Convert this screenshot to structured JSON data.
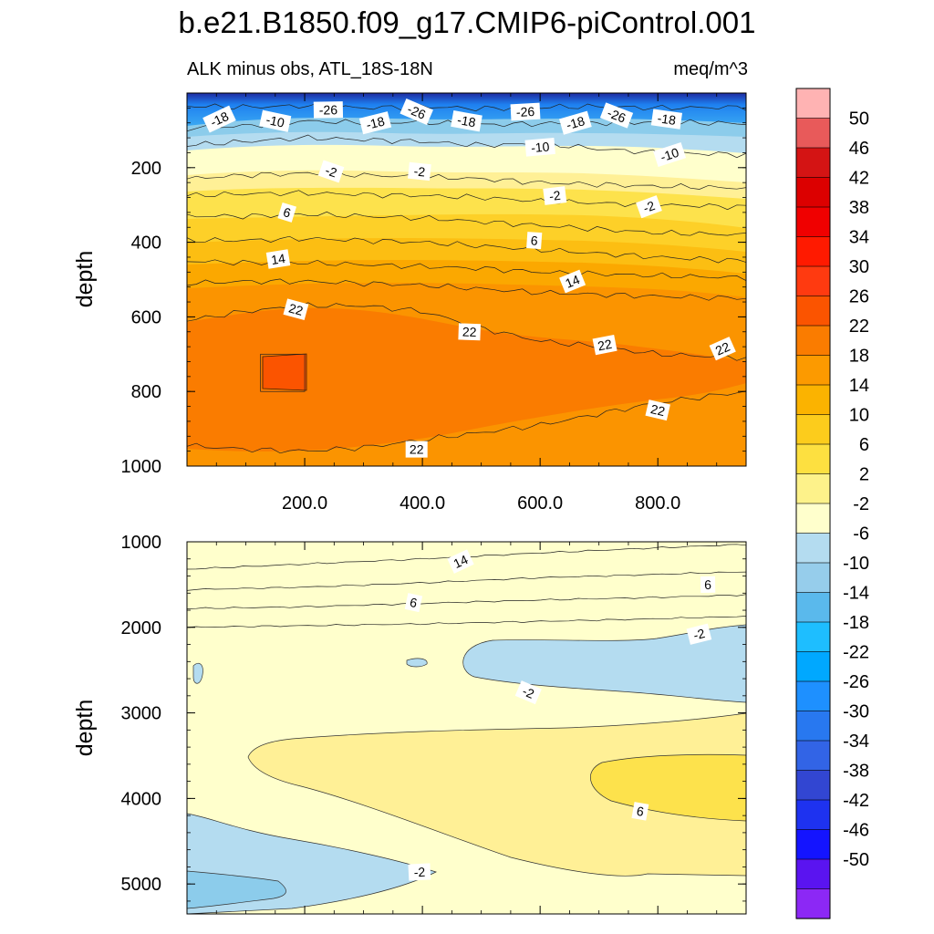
{
  "figure": {
    "title": "b.e21.B1850.f09_g17.CMIP6-piControl.001",
    "left_string": "ALK minus obs, ATL_18S-18N",
    "right_string": "meq/m^3"
  },
  "chart_data": [
    {
      "type": "heatmap",
      "panel": "upper",
      "title": "ALK minus obs, ATL_18S-18N",
      "units": "meq/m^3",
      "xlabel": "",
      "ylabel": "depth",
      "xlim": [
        0,
        950
      ],
      "ylim": [
        1000,
        0
      ],
      "xticks": [
        "200.0",
        "400.0",
        "600.0",
        "800.0"
      ],
      "xtick_values": [
        200,
        400,
        600,
        800
      ],
      "yticks": [
        "200",
        "400",
        "600",
        "800",
        "1000"
      ],
      "ytick_values": [
        200,
        400,
        600,
        800,
        1000
      ],
      "contour_lines": [
        {
          "level": -26,
          "x": [
            0,
            100,
            200,
            300,
            400,
            500,
            600,
            700,
            800,
            950
          ],
          "depth": [
            35,
            38,
            34,
            40,
            36,
            42,
            38,
            36,
            40,
            38
          ]
        },
        {
          "level": -18,
          "x": [
            0,
            100,
            200,
            300,
            400,
            500,
            600,
            700,
            800,
            950
          ],
          "depth": [
            95,
            88,
            75,
            80,
            78,
            85,
            82,
            80,
            78,
            82
          ]
        },
        {
          "level": -10,
          "x": [
            0,
            100,
            200,
            300,
            400,
            500,
            600,
            700,
            800,
            950
          ],
          "depth": [
            140,
            130,
            120,
            125,
            130,
            140,
            135,
            150,
            160,
            165
          ]
        },
        {
          "level": -2,
          "x": [
            0,
            100,
            200,
            300,
            400,
            500,
            600,
            700,
            800,
            950
          ],
          "depth": [
            230,
            220,
            215,
            220,
            225,
            230,
            240,
            245,
            250,
            255
          ]
        },
        {
          "level": 2,
          "x": [
            0,
            100,
            200,
            300,
            400,
            500,
            600,
            700,
            800,
            950
          ],
          "depth": [
            275,
            270,
            268,
            272,
            275,
            280,
            290,
            295,
            300,
            305
          ]
        },
        {
          "level": 6,
          "x": [
            0,
            100,
            200,
            300,
            400,
            500,
            600,
            700,
            800,
            950
          ],
          "depth": [
            330,
            330,
            325,
            330,
            335,
            345,
            355,
            365,
            375,
            380
          ]
        },
        {
          "level": 10,
          "x": [
            0,
            100,
            200,
            300,
            400,
            500,
            600,
            700,
            800,
            950
          ],
          "depth": [
            395,
            395,
            390,
            395,
            400,
            410,
            420,
            430,
            440,
            450
          ]
        },
        {
          "level": 14,
          "x": [
            0,
            100,
            200,
            300,
            400,
            500,
            600,
            700,
            800,
            950
          ],
          "depth": [
            450,
            455,
            455,
            460,
            465,
            470,
            480,
            485,
            490,
            495
          ]
        },
        {
          "level": 18,
          "x": [
            0,
            100,
            200,
            300,
            400,
            500,
            600,
            700,
            800,
            950
          ],
          "depth": [
            510,
            505,
            505,
            510,
            515,
            525,
            535,
            540,
            545,
            550
          ]
        },
        {
          "level": 22,
          "x": [
            0,
            100,
            200,
            300,
            400,
            500,
            600,
            700,
            800,
            950
          ],
          "depth": [
            610,
            585,
            570,
            570,
            585,
            630,
            665,
            680,
            700,
            710
          ]
        },
        {
          "level": 22,
          "x": [
            0,
            100,
            200,
            300,
            400,
            500,
            600,
            700,
            800,
            950
          ],
          "depth": [
            945,
            955,
            960,
            950,
            930,
            910,
            890,
            860,
            830,
            800
          ]
        }
      ],
      "patch_26": {
        "x": [
          125,
          200
        ],
        "depth": [
          700,
          800
        ],
        "level": 26
      },
      "labels": [
        {
          "text": "-18",
          "x": 55,
          "depth": 70
        },
        {
          "text": "-10",
          "x": 150,
          "depth": 75
        },
        {
          "text": "-26",
          "x": 240,
          "depth": 45
        },
        {
          "text": "-18",
          "x": 320,
          "depth": 80
        },
        {
          "text": "-26",
          "x": 390,
          "depth": 50
        },
        {
          "text": "-18",
          "x": 475,
          "depth": 75
        },
        {
          "text": "-26",
          "x": 575,
          "depth": 50
        },
        {
          "text": "-18",
          "x": 660,
          "depth": 80
        },
        {
          "text": "-26",
          "x": 730,
          "depth": 60
        },
        {
          "text": "-18",
          "x": 815,
          "depth": 70
        },
        {
          "text": "-10",
          "x": 600,
          "depth": 145
        },
        {
          "text": "-10",
          "x": 820,
          "depth": 165
        },
        {
          "text": "-2",
          "x": 245,
          "depth": 210
        },
        {
          "text": "-2",
          "x": 395,
          "depth": 210
        },
        {
          "text": "-2",
          "x": 625,
          "depth": 275
        },
        {
          "text": "-2",
          "x": 785,
          "depth": 305
        },
        {
          "text": "6",
          "x": 170,
          "depth": 320
        },
        {
          "text": "6",
          "x": 590,
          "depth": 395
        },
        {
          "text": "14",
          "x": 155,
          "depth": 445
        },
        {
          "text": "14",
          "x": 655,
          "depth": 505
        },
        {
          "text": "22",
          "x": 185,
          "depth": 580
        },
        {
          "text": "22",
          "x": 480,
          "depth": 640
        },
        {
          "text": "22",
          "x": 710,
          "depth": 675
        },
        {
          "text": "22",
          "x": 910,
          "depth": 685
        },
        {
          "text": "22",
          "x": 800,
          "depth": 850
        },
        {
          "text": "22",
          "x": 390,
          "depth": 955
        }
      ]
    },
    {
      "type": "heatmap",
      "panel": "lower",
      "xlabel": "",
      "ylabel": "depth",
      "xlim": [
        0,
        950
      ],
      "ylim": [
        5350,
        1000
      ],
      "yticks": [
        "1000",
        "2000",
        "3000",
        "4000",
        "5000"
      ],
      "ytick_values": [
        1000,
        2000,
        3000,
        4000,
        5000
      ],
      "contour_lines": [
        {
          "level": 14,
          "x": [
            0,
            200,
            400,
            600,
            800,
            950
          ],
          "depth": [
            1320,
            1260,
            1200,
            1130,
            1070,
            1030
          ]
        },
        {
          "level": 10,
          "x": [
            0,
            200,
            400,
            600,
            800,
            950
          ],
          "depth": [
            1560,
            1530,
            1480,
            1420,
            1380,
            1350
          ]
        },
        {
          "level": 6,
          "x": [
            0,
            200,
            400,
            600,
            800,
            950
          ],
          "depth": [
            1780,
            1760,
            1720,
            1680,
            1650,
            1620
          ]
        },
        {
          "level": 2,
          "x": [
            0,
            200,
            400,
            600,
            800,
            950
          ],
          "depth": [
            2000,
            1980,
            1960,
            1930,
            1900,
            1870
          ]
        }
      ],
      "labels": [
        {
          "text": "14",
          "x": 465,
          "depth": 1230
        },
        {
          "text": "6",
          "x": 385,
          "depth": 1710
        },
        {
          "text": "6",
          "x": 885,
          "depth": 1500
        },
        {
          "text": "-2",
          "x": 870,
          "depth": 2080
        },
        {
          "text": "-2",
          "x": 580,
          "depth": 2760
        },
        {
          "text": "6",
          "x": 770,
          "depth": 4150
        },
        {
          "text": "-2",
          "x": 395,
          "depth": 4860
        }
      ]
    }
  ],
  "colorbar": {
    "labels": [
      "50",
      "46",
      "42",
      "38",
      "34",
      "30",
      "26",
      "22",
      "18",
      "14",
      "10",
      "6",
      "2",
      "-2",
      "-6",
      "-10",
      "-14",
      "-18",
      "-22",
      "-26",
      "-30",
      "-34",
      "-38",
      "-42",
      "-46",
      "-50"
    ],
    "colors": [
      "#ffb3b3",
      "#e85a5a",
      "#d41414",
      "#dc0000",
      "#f00000",
      "#ff1a00",
      "#ff3a10",
      "#fb5400",
      "#fa7c00",
      "#fc9a00",
      "#fbb300",
      "#fccc1c",
      "#fde040",
      "#fdf28a",
      "#ffffcc",
      "#b4dcf0",
      "#96cdeb",
      "#5ab9ec",
      "#1ebeff",
      "#00a8ff",
      "#1e90ff",
      "#2878f0",
      "#3264e6",
      "#3246d2",
      "#1e32f0",
      "#1414ff",
      "#5a14f0",
      "#8c28f5"
    ]
  }
}
